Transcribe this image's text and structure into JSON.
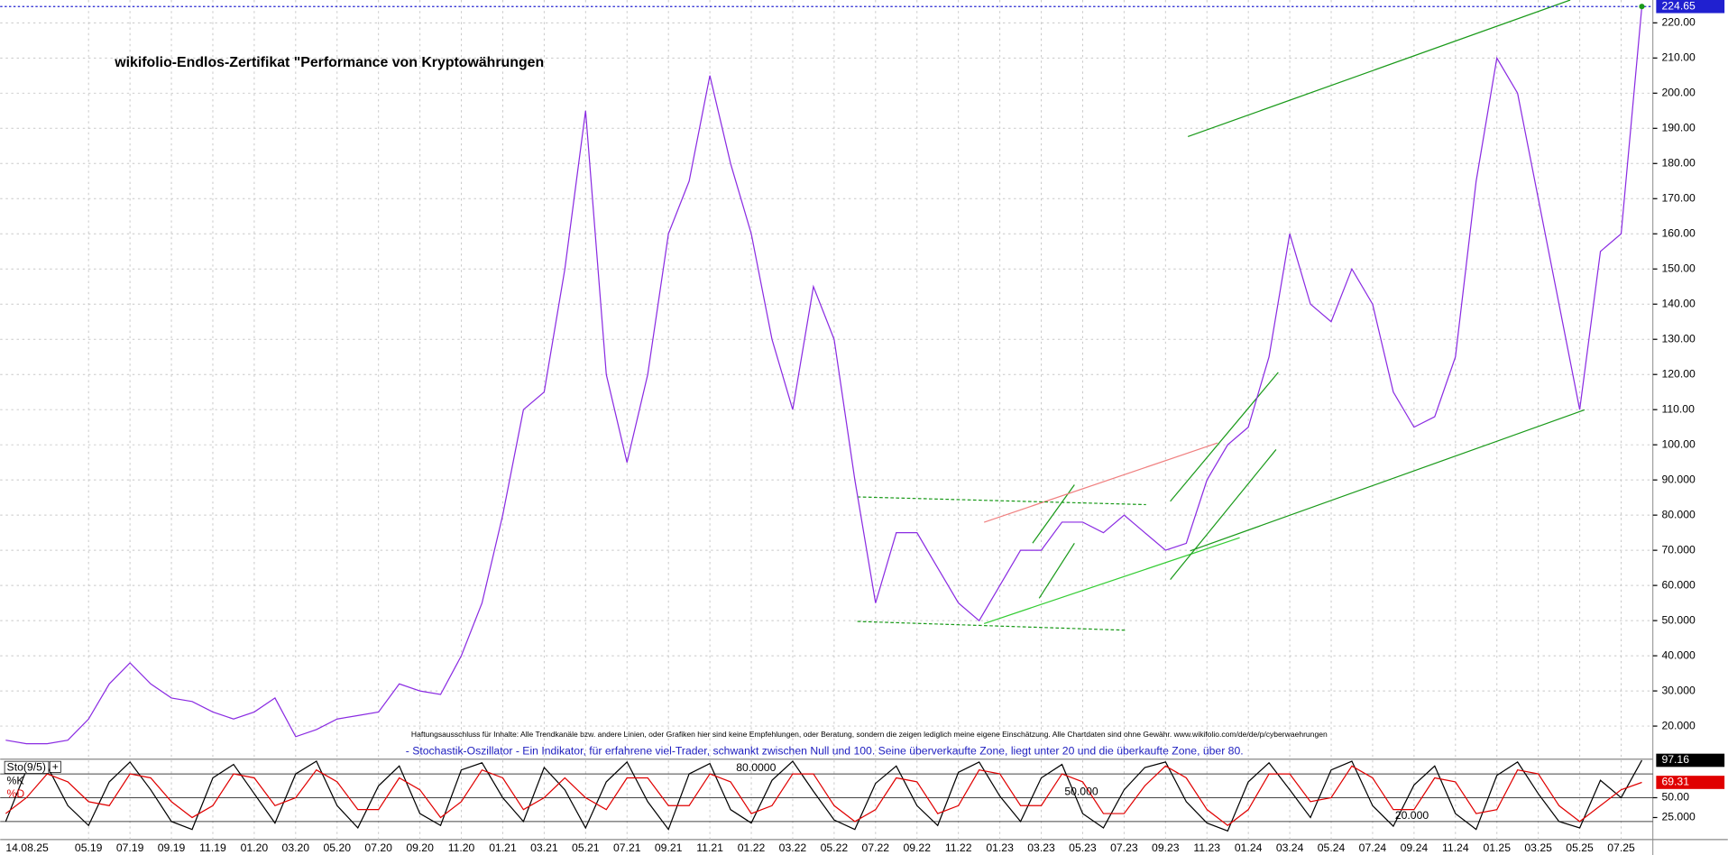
{
  "chart_data": [
    {
      "type": "line",
      "title": "wikifolio-Endlos-Zertifikat \"Performance von Kryptowährungen",
      "current_date": "14.08.25",
      "disclaimer": "Haftungsausschluss für Inhalte: Alle Trendkanäle bzw. andere Linien, oder Grafiken hier sind keine Empfehlungen, oder Beratung, sondern die zeigen lediglich meine eigene Einschätzung. Alle Chartdaten sind ohne Gewähr.  www.wikifolio.com/de/de/p/cyberwaehrungen",
      "categories": [
        null,
        null,
        null,
        null,
        "05.19",
        null,
        "07.19",
        null,
        "09.19",
        null,
        "11.19",
        null,
        "01.20",
        null,
        "03.20",
        null,
        "05.20",
        null,
        "07.20",
        null,
        "09.20",
        null,
        "11.20",
        null,
        "01.21",
        null,
        "03.21",
        null,
        "05.21",
        null,
        "07.21",
        null,
        "09.21",
        null,
        "11.21",
        null,
        "01.22",
        null,
        "03.22",
        null,
        "05.22",
        null,
        "07.22",
        null,
        "09.22",
        null,
        "11.22",
        null,
        "01.23",
        null,
        "03.23",
        null,
        "05.23",
        null,
        "07.23",
        null,
        "09.23",
        null,
        "11.23",
        null,
        "01.24",
        null,
        "03.24",
        null,
        "05.24",
        null,
        "07.24",
        null,
        "09.24",
        null,
        "11.24",
        null,
        "01.25",
        null,
        "03.25",
        null,
        "05.25",
        null,
        "07.25",
        null
      ],
      "series": [
        {
          "color": "#8a2be2",
          "values": [
            16,
            15,
            15,
            16,
            22,
            32,
            38,
            32,
            28,
            27,
            24,
            22,
            24,
            28,
            17,
            19,
            22,
            23,
            24,
            32,
            30,
            29,
            40,
            55,
            80,
            110,
            115,
            150,
            195,
            120,
            95,
            120,
            160,
            175,
            205,
            180,
            160,
            130,
            110,
            145,
            130,
            90,
            55,
            75,
            75,
            65,
            55,
            50,
            60,
            70,
            70,
            78,
            78,
            75,
            80,
            75,
            70,
            72,
            90,
            100,
            105,
            125,
            160,
            140,
            135,
            150,
            140,
            115,
            105,
            108,
            125,
            175,
            210,
            200,
            170,
            140,
            110,
            155,
            160,
            224.65
          ]
        }
      ],
      "ylim": [
        10.6,
        226.5
      ],
      "yticks": [
        {
          "value": 20,
          "label": "20.000"
        },
        {
          "value": 30,
          "label": "30.000"
        },
        {
          "value": 40,
          "label": "40.000"
        },
        {
          "value": 50,
          "label": "50.000"
        },
        {
          "value": 60,
          "label": "60.000"
        },
        {
          "value": 70,
          "label": "70.000"
        },
        {
          "value": 80,
          "label": "80.000"
        },
        {
          "value": 90,
          "label": "90.000"
        },
        {
          "value": 100,
          "label": "100.00"
        },
        {
          "value": 110,
          "label": "110.00"
        },
        {
          "value": 120,
          "label": "120.00"
        },
        {
          "value": 130,
          "label": "130.00"
        },
        {
          "value": 140,
          "label": "140.00"
        },
        {
          "value": 150,
          "label": "150.00"
        },
        {
          "value": 160,
          "label": "160.00"
        },
        {
          "value": 170,
          "label": "170.00"
        },
        {
          "value": 180,
          "label": "180.00"
        },
        {
          "value": 190,
          "label": "190.00"
        },
        {
          "value": 200,
          "label": "200.00"
        },
        {
          "value": 210,
          "label": "210.00"
        },
        {
          "value": 220,
          "label": "220.00"
        }
      ],
      "grid": true
    },
    {
      "type": "line",
      "title": "Sto(9/5)",
      "description": "- Stochastik-Oszillator - Ein Indikator, für erfahrene viel-Trader, schwankt zwischen Null und 100. Seine überverkaufte Zone, liegt unter 20 und die überkaufte Zone, über 80.",
      "series": [
        {
          "name": "%K",
          "color": "#000000",
          "values": [
            20,
            85,
            90,
            40,
            15,
            70,
            95,
            60,
            20,
            10,
            75,
            92,
            55,
            18,
            80,
            96,
            40,
            12,
            65,
            90,
            30,
            15,
            85,
            94,
            50,
            20,
            88,
            60,
            12,
            70,
            95,
            45,
            10,
            80,
            93,
            35,
            18,
            72,
            96,
            58,
            22,
            10,
            68,
            90,
            40,
            15,
            82,
            95,
            52,
            20,
            75,
            92,
            30,
            12,
            60,
            88,
            95,
            45,
            18,
            8,
            70,
            94,
            60,
            25,
            85,
            96,
            40,
            14,
            66,
            90,
            30,
            10,
            78,
            95,
            55,
            20,
            12,
            72,
            50,
            97.16
          ]
        },
        {
          "name": "%D",
          "color": "#e00000",
          "values": [
            30,
            50,
            80,
            70,
            45,
            40,
            80,
            75,
            45,
            25,
            40,
            80,
            75,
            40,
            50,
            85,
            70,
            35,
            35,
            75,
            60,
            25,
            45,
            85,
            75,
            35,
            50,
            75,
            50,
            35,
            75,
            75,
            40,
            40,
            80,
            70,
            30,
            40,
            80,
            80,
            40,
            20,
            35,
            75,
            70,
            30,
            40,
            85,
            80,
            40,
            40,
            80,
            70,
            30,
            30,
            65,
            90,
            75,
            35,
            15,
            35,
            80,
            80,
            45,
            50,
            90,
            75,
            35,
            35,
            75,
            70,
            30,
            35,
            85,
            80,
            40,
            20,
            40,
            60,
            69.31
          ]
        }
      ],
      "ylim": [
        0,
        100
      ],
      "yticks": [
        {
          "value": 25,
          "label": "25.000"
        },
        {
          "value": 50,
          "label": "50.00"
        }
      ],
      "levels": [
        {
          "value": 80,
          "label": "80.0000"
        },
        {
          "value": 50,
          "label": "50.000"
        },
        {
          "value": 20,
          "label": "20.000"
        }
      ]
    }
  ]
}
